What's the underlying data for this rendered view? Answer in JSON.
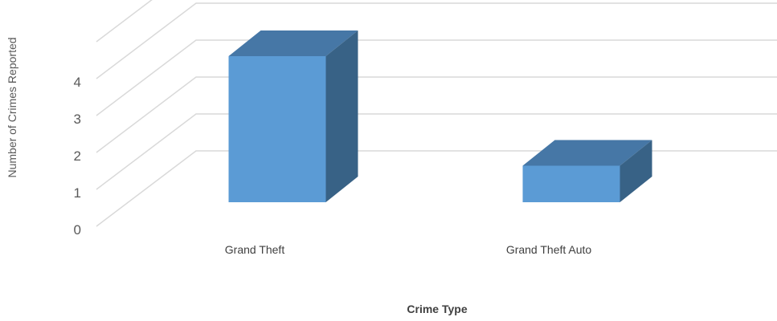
{
  "chart_data": {
    "type": "bar",
    "categories": [
      "Grand Theft",
      "Grand Theft Auto"
    ],
    "values": [
      4,
      1
    ],
    "xlabel": "Crime Type",
    "ylabel": "Number of Crimes Reported",
    "ylim": [
      0,
      5
    ],
    "y_ticks": [
      "0",
      "1",
      "2",
      "3",
      "4"
    ],
    "grid": true,
    "style": "3d-column",
    "colors": {
      "front": "#5B9BD5",
      "top": "#4677A6",
      "side": "#386286",
      "grid": "#D9D9D9"
    }
  }
}
